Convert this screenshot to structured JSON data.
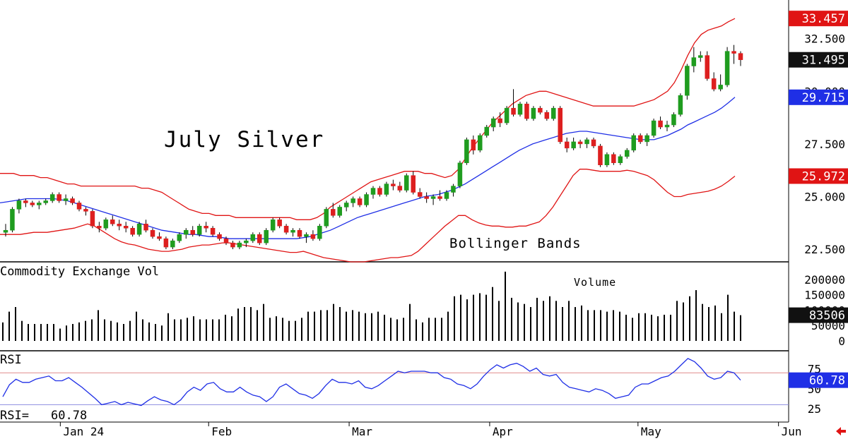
{
  "colors": {
    "background": "#ffffff",
    "up_candle": "#1f9c1f",
    "down_candle": "#dd1f1f",
    "middle_band": "#1f2fe6",
    "outer_band": "#e01414",
    "volume_bar": "#000000",
    "rsi_line": "#1f2fe6",
    "rsi_upper_ref": "#e08c8c",
    "rsi_lower_ref": "#8c8ce0",
    "tag_upper": "#e01414",
    "tag_last": "#111111",
    "tag_middle": "#1f2fe6",
    "tag_lower": "#e01414"
  },
  "chart_data": [
    {
      "type": "candlestick",
      "title": "July Silver",
      "annotation": "Bollinger Bands",
      "y_ticks": [
        "32.500",
        "30.000",
        "27.500",
        "25.000",
        "22.500"
      ],
      "y_tick_values": [
        32.5,
        30.0,
        27.5,
        25.0,
        22.5
      ],
      "ylim": [
        22.0,
        34.2
      ],
      "x_labels": [
        "Jan 24",
        "Feb",
        "Mar",
        "Apr",
        "May",
        "Jun"
      ],
      "x_label_index": [
        7,
        26,
        44,
        62,
        81,
        99
      ],
      "n_slots": 104,
      "last_values": {
        "upper_band": "33.457",
        "last_price": "31.495",
        "middle_band": "29.715",
        "lower_band": "25.972"
      },
      "ohlc": [
        [
          23.3,
          23.7,
          23.1,
          23.4
        ],
        [
          23.4,
          24.5,
          23.3,
          24.4
        ],
        [
          24.4,
          24.9,
          24.2,
          24.8
        ],
        [
          24.8,
          24.9,
          24.5,
          24.7
        ],
        [
          24.7,
          24.8,
          24.5,
          24.6
        ],
        [
          24.6,
          24.8,
          24.4,
          24.7
        ],
        [
          24.7,
          24.9,
          24.6,
          24.8
        ],
        [
          24.8,
          25.2,
          24.7,
          25.1
        ],
        [
          25.1,
          25.2,
          24.7,
          24.8
        ],
        [
          24.8,
          25.1,
          24.6,
          24.9
        ],
        [
          24.9,
          25.0,
          24.6,
          24.7
        ],
        [
          24.7,
          24.8,
          24.3,
          24.4
        ],
        [
          24.4,
          24.5,
          24.1,
          24.3
        ],
        [
          24.3,
          24.4,
          23.5,
          23.6
        ],
        [
          23.6,
          23.8,
          23.3,
          23.5
        ],
        [
          23.5,
          24.0,
          23.4,
          23.9
        ],
        [
          23.9,
          24.1,
          23.6,
          23.7
        ],
        [
          23.7,
          23.9,
          23.4,
          23.6
        ],
        [
          23.6,
          23.8,
          23.3,
          23.5
        ],
        [
          23.5,
          23.6,
          23.1,
          23.2
        ],
        [
          23.2,
          23.8,
          23.1,
          23.7
        ],
        [
          23.7,
          23.9,
          23.3,
          23.4
        ],
        [
          23.4,
          23.5,
          23.0,
          23.1
        ],
        [
          23.1,
          23.3,
          22.9,
          23.0
        ],
        [
          23.0,
          23.1,
          22.5,
          22.6
        ],
        [
          22.6,
          23.0,
          22.5,
          22.9
        ],
        [
          22.9,
          23.3,
          22.8,
          23.2
        ],
        [
          23.2,
          23.5,
          23.0,
          23.4
        ],
        [
          23.4,
          23.6,
          23.1,
          23.2
        ],
        [
          23.2,
          23.7,
          23.1,
          23.6
        ],
        [
          23.6,
          23.8,
          23.3,
          23.5
        ],
        [
          23.5,
          23.6,
          23.1,
          23.2
        ],
        [
          23.2,
          23.3,
          22.9,
          23.0
        ],
        [
          23.0,
          23.1,
          22.7,
          22.8
        ],
        [
          22.8,
          22.9,
          22.5,
          22.6
        ],
        [
          22.6,
          22.9,
          22.5,
          22.8
        ],
        [
          22.8,
          23.0,
          22.6,
          22.9
        ],
        [
          22.9,
          23.3,
          22.8,
          23.2
        ],
        [
          23.2,
          23.3,
          22.7,
          22.8
        ],
        [
          22.8,
          23.5,
          22.7,
          23.4
        ],
        [
          23.4,
          24.0,
          23.3,
          23.9
        ],
        [
          23.9,
          24.0,
          23.5,
          23.6
        ],
        [
          23.6,
          23.7,
          23.2,
          23.3
        ],
        [
          23.3,
          23.5,
          23.1,
          23.4
        ],
        [
          23.4,
          23.5,
          23.0,
          23.1
        ],
        [
          23.1,
          23.3,
          22.8,
          23.2
        ],
        [
          23.2,
          23.4,
          22.9,
          23.0
        ],
        [
          23.0,
          23.7,
          22.9,
          23.6
        ],
        [
          23.6,
          24.5,
          23.5,
          24.4
        ],
        [
          24.4,
          24.7,
          24.0,
          24.1
        ],
        [
          24.1,
          24.6,
          24.0,
          24.5
        ],
        [
          24.5,
          24.8,
          24.3,
          24.7
        ],
        [
          24.7,
          25.0,
          24.5,
          24.9
        ],
        [
          24.9,
          25.0,
          24.5,
          24.6
        ],
        [
          24.6,
          25.2,
          24.5,
          25.1
        ],
        [
          25.1,
          25.5,
          24.9,
          25.4
        ],
        [
          25.4,
          25.5,
          25.0,
          25.1
        ],
        [
          25.1,
          25.7,
          25.0,
          25.6
        ],
        [
          25.6,
          25.8,
          25.3,
          25.5
        ],
        [
          25.5,
          25.7,
          25.2,
          25.3
        ],
        [
          25.3,
          26.1,
          25.2,
          26.0
        ],
        [
          26.0,
          26.2,
          25.1,
          25.2
        ],
        [
          25.2,
          25.4,
          24.9,
          25.0
        ],
        [
          25.0,
          25.2,
          24.7,
          24.9
        ],
        [
          24.9,
          25.1,
          24.6,
          25.0
        ],
        [
          25.0,
          25.3,
          24.8,
          24.9
        ],
        [
          24.9,
          25.3,
          24.8,
          25.2
        ],
        [
          25.2,
          25.6,
          25.0,
          25.5
        ],
        [
          25.5,
          26.7,
          25.4,
          26.6
        ],
        [
          26.6,
          27.8,
          26.5,
          27.7
        ],
        [
          27.7,
          27.9,
          27.0,
          27.2
        ],
        [
          27.2,
          28.0,
          27.1,
          27.9
        ],
        [
          27.9,
          28.4,
          27.8,
          28.3
        ],
        [
          28.3,
          28.8,
          28.1,
          28.7
        ],
        [
          28.7,
          29.0,
          28.3,
          28.5
        ],
        [
          28.5,
          29.3,
          28.4,
          29.2
        ],
        [
          29.2,
          30.1,
          28.8,
          28.9
        ],
        [
          28.9,
          29.5,
          28.8,
          29.4
        ],
        [
          29.4,
          29.5,
          28.6,
          28.7
        ],
        [
          28.7,
          29.3,
          28.6,
          29.2
        ],
        [
          29.2,
          29.3,
          28.9,
          29.0
        ],
        [
          29.0,
          29.1,
          28.6,
          28.7
        ],
        [
          28.7,
          29.3,
          28.6,
          29.2
        ],
        [
          29.2,
          29.3,
          27.5,
          27.6
        ],
        [
          27.6,
          27.8,
          27.1,
          27.3
        ],
        [
          27.3,
          27.8,
          27.2,
          27.6
        ],
        [
          27.6,
          27.7,
          27.3,
          27.5
        ],
        [
          27.5,
          27.8,
          27.3,
          27.7
        ],
        [
          27.7,
          27.8,
          27.3,
          27.4
        ],
        [
          27.4,
          27.5,
          26.4,
          26.5
        ],
        [
          26.5,
          27.1,
          26.4,
          27.0
        ],
        [
          27.0,
          27.1,
          26.5,
          26.6
        ],
        [
          26.6,
          27.0,
          26.5,
          26.9
        ],
        [
          26.9,
          27.3,
          26.8,
          27.2
        ],
        [
          27.2,
          28.0,
          27.1,
          27.9
        ],
        [
          27.9,
          28.0,
          27.5,
          27.6
        ],
        [
          27.6,
          28.0,
          27.4,
          27.9
        ],
        [
          27.9,
          28.7,
          27.8,
          28.6
        ],
        [
          28.6,
          28.8,
          28.2,
          28.3
        ],
        [
          28.3,
          28.6,
          28.1,
          28.4
        ],
        [
          28.4,
          29.0,
          28.3,
          28.9
        ],
        [
          28.9,
          29.9,
          28.8,
          29.8
        ],
        [
          29.8,
          31.3,
          29.6,
          31.2
        ],
        [
          31.2,
          32.1,
          30.9,
          31.6
        ]
      ],
      "ohlc_tail": [
        [
          31.6,
          31.9,
          31.4,
          31.7
        ],
        [
          31.7,
          31.9,
          30.5,
          30.6
        ],
        [
          30.6,
          30.9,
          30.0,
          30.1
        ],
        [
          30.1,
          30.8,
          30.0,
          30.3
        ],
        [
          30.3,
          32.1,
          30.2,
          31.9
        ],
        [
          31.9,
          32.2,
          31.3,
          31.8
        ],
        [
          31.8,
          31.9,
          31.2,
          31.495
        ]
      ],
      "upper_band": [
        26.1,
        26.1,
        26.1,
        26.0,
        26.0,
        26.0,
        25.9,
        25.9,
        25.8,
        25.7,
        25.6,
        25.6,
        25.5,
        25.5,
        25.5,
        25.5,
        25.5,
        25.5,
        25.5,
        25.5,
        25.5,
        25.4,
        25.4,
        25.3,
        25.2,
        25.0,
        24.8,
        24.6,
        24.4,
        24.3,
        24.2,
        24.2,
        24.1,
        24.1,
        24.1,
        24.0,
        24.0,
        24.0,
        24.0,
        24.0,
        24.0,
        24.0,
        24.0,
        24.0,
        23.9,
        23.9,
        23.9,
        24.0,
        24.2,
        24.5,
        24.7,
        24.9,
        25.1,
        25.3,
        25.5,
        25.7,
        25.8,
        25.9,
        26.0,
        26.1,
        26.2,
        26.2,
        26.2,
        26.1,
        26.1,
        26.0,
        25.9,
        26.0,
        26.3,
        26.8,
        27.3,
        27.7,
        28.1,
        28.5,
        28.8,
        29.1,
        29.4,
        29.6,
        29.8,
        29.9,
        30.0,
        30.0,
        29.9,
        29.8,
        29.7,
        29.6,
        29.5,
        29.4,
        29.3,
        29.3,
        29.3,
        29.3,
        29.3,
        29.3,
        29.3,
        29.4,
        29.5,
        29.6,
        29.8,
        30.0,
        30.4,
        31.0,
        31.7,
        32.3,
        32.7,
        32.9,
        33.0,
        33.1,
        33.3,
        33.457
      ],
      "middle_band": [
        24.7,
        24.75,
        24.8,
        24.85,
        24.9,
        24.9,
        24.9,
        24.9,
        24.9,
        24.85,
        24.8,
        24.7,
        24.6,
        24.5,
        24.4,
        24.3,
        24.2,
        24.1,
        24.0,
        23.9,
        23.8,
        23.7,
        23.6,
        23.5,
        23.4,
        23.35,
        23.3,
        23.25,
        23.2,
        23.2,
        23.15,
        23.1,
        23.1,
        23.05,
        23.0,
        23.0,
        23.0,
        23.0,
        23.0,
        23.0,
        23.0,
        23.0,
        23.0,
        23.0,
        23.0,
        23.05,
        23.1,
        23.2,
        23.3,
        23.4,
        23.55,
        23.7,
        23.85,
        24.0,
        24.1,
        24.2,
        24.3,
        24.4,
        24.5,
        24.6,
        24.7,
        24.8,
        24.9,
        25.0,
        25.05,
        25.1,
        25.2,
        25.3,
        25.45,
        25.6,
        25.8,
        26.0,
        26.2,
        26.4,
        26.6,
        26.8,
        27.0,
        27.2,
        27.35,
        27.5,
        27.6,
        27.7,
        27.8,
        27.9,
        28.0,
        28.05,
        28.1,
        28.1,
        28.05,
        28.0,
        27.95,
        27.9,
        27.85,
        27.8,
        27.75,
        27.7,
        27.7,
        27.7,
        27.8,
        27.9,
        28.05,
        28.2,
        28.4,
        28.55,
        28.7,
        28.85,
        29.0,
        29.2,
        29.45,
        29.715
      ],
      "lower_band": [
        23.2,
        23.2,
        23.2,
        23.2,
        23.25,
        23.3,
        23.3,
        23.3,
        23.35,
        23.4,
        23.45,
        23.5,
        23.6,
        23.7,
        23.6,
        23.4,
        23.2,
        23.0,
        22.85,
        22.75,
        22.7,
        22.6,
        22.5,
        22.45,
        22.4,
        22.4,
        22.45,
        22.5,
        22.6,
        22.65,
        22.7,
        22.7,
        22.75,
        22.8,
        22.8,
        22.75,
        22.7,
        22.65,
        22.6,
        22.55,
        22.5,
        22.45,
        22.4,
        22.35,
        22.35,
        22.4,
        22.3,
        22.2,
        22.1,
        22.05,
        22.0,
        21.95,
        21.9,
        21.9,
        21.9,
        21.95,
        22.0,
        22.05,
        22.1,
        22.1,
        22.15,
        22.2,
        22.4,
        22.7,
        23.0,
        23.3,
        23.6,
        23.85,
        24.1,
        24.1,
        23.9,
        23.75,
        23.65,
        23.6,
        23.6,
        23.55,
        23.55,
        23.6,
        23.6,
        23.7,
        23.8,
        24.1,
        24.5,
        25.0,
        25.5,
        26.0,
        26.3,
        26.3,
        26.25,
        26.2,
        26.2,
        26.2,
        26.2,
        26.25,
        26.2,
        26.1,
        26.0,
        25.8,
        25.5,
        25.2,
        25.0,
        25.0,
        25.1,
        25.15,
        25.2,
        25.25,
        25.35,
        25.5,
        25.72,
        25.972
      ]
    },
    {
      "type": "bar",
      "title": "Commodity Exchange Vol",
      "annotation": "Volume",
      "y_ticks": [
        "200000",
        "150000",
        "100000",
        "50000",
        "0"
      ],
      "y_tick_values": [
        200000,
        150000,
        100000,
        50000,
        0
      ],
      "ylim": [
        0,
        250000
      ],
      "last_value": "83506",
      "values": [
        60000,
        95000,
        110000,
        65000,
        55000,
        55000,
        55000,
        55000,
        55000,
        40000,
        50000,
        55000,
        60000,
        65000,
        70000,
        100000,
        70000,
        65000,
        60000,
        55000,
        65000,
        95000,
        70000,
        60000,
        55000,
        50000,
        90000,
        70000,
        70000,
        75000,
        80000,
        70000,
        70000,
        70000,
        70000,
        85000,
        80000,
        105000,
        110000,
        110000,
        100000,
        120000,
        75000,
        80000,
        75000,
        65000,
        65000,
        75000,
        95000,
        95000,
        100000,
        100000,
        120000,
        110000,
        95000,
        100000,
        95000,
        90000,
        90000,
        95000,
        85000,
        75000,
        70000,
        75000,
        120000,
        70000,
        60000,
        75000,
        75000,
        75000,
        95000,
        145000,
        150000,
        135000,
        150000,
        155000,
        150000,
        175000,
        130000,
        225000,
        140000,
        125000,
        120000,
        110000,
        140000,
        130000,
        145000,
        130000,
        110000,
        130000,
        110000,
        115000,
        100000,
        100000,
        100000,
        95000,
        100000,
        95000,
        85000,
        75000,
        90000,
        90000,
        85000,
        80000,
        85000,
        85000,
        130000,
        125000,
        145000,
        165000,
        120000,
        110000,
        115000,
        90000,
        150000,
        95000,
        83506
      ]
    },
    {
      "type": "line",
      "title": "RSI",
      "readout_label": "RSI=",
      "readout_value": "60.78",
      "last_value": "60.78",
      "y_ticks": [
        "75",
        "50",
        "25"
      ],
      "y_tick_values": [
        75,
        50,
        25
      ],
      "ylim": [
        10,
        95
      ],
      "reference_levels": [
        70,
        30
      ],
      "values": [
        40,
        55,
        62,
        58,
        58,
        62,
        64,
        66,
        60,
        60,
        64,
        58,
        52,
        45,
        38,
        30,
        32,
        34,
        30,
        33,
        31,
        29,
        35,
        40,
        36,
        34,
        30,
        36,
        46,
        52,
        48,
        56,
        58,
        50,
        46,
        46,
        52,
        46,
        42,
        40,
        34,
        40,
        52,
        56,
        50,
        44,
        42,
        38,
        44,
        54,
        62,
        58,
        58,
        56,
        60,
        52,
        50,
        54,
        60,
        66,
        72,
        70,
        72,
        72,
        72,
        70,
        70,
        64,
        62,
        56,
        54,
        50,
        56,
        66,
        74,
        80,
        76,
        80,
        82,
        78,
        72,
        76,
        68,
        66,
        68,
        58,
        52,
        50,
        48,
        46,
        50,
        48,
        44,
        38,
        40,
        42,
        52,
        56,
        56,
        60,
        64,
        66,
        72,
        80,
        88,
        84,
        76,
        66,
        62,
        64,
        72,
        70,
        60.78
      ]
    }
  ],
  "labels": {
    "x_axis": [
      "Jan 24",
      "Feb",
      "Mar",
      "Apr",
      "May",
      "Jun"
    ]
  },
  "icons": {
    "corner": "red-left-arrow-icon"
  }
}
